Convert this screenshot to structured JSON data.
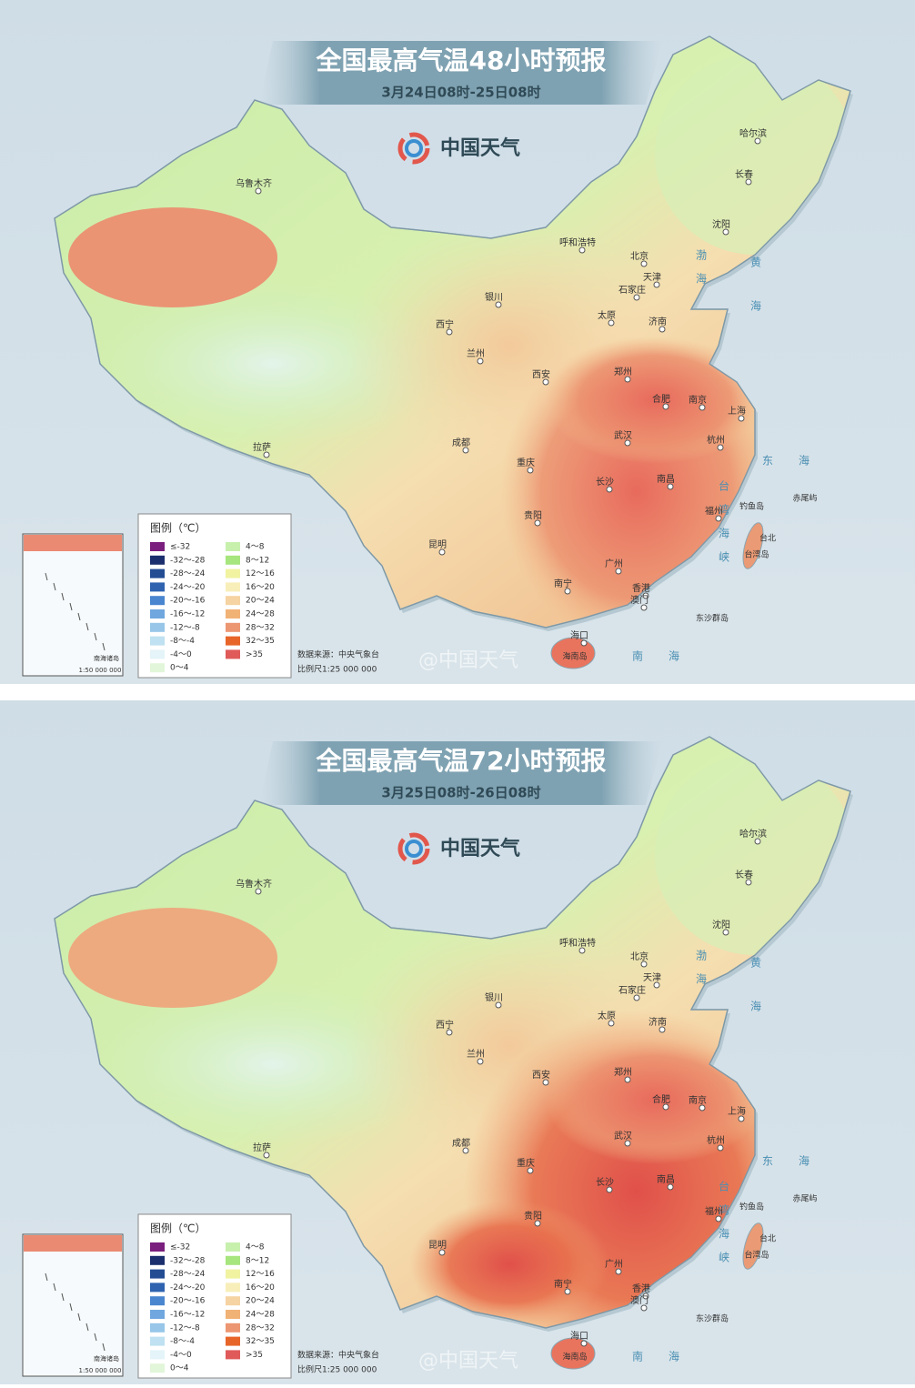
{
  "panels": [
    {
      "title": "全国最高气温48小时预报",
      "subtitle": "3月24日08时-25日08时"
    },
    {
      "title": "全国最高气温72小时预报",
      "subtitle": "3月25日08时-26日08时"
    }
  ],
  "brand": "中国天气",
  "legend": {
    "title": "图例（℃）",
    "items": [
      {
        "label": "≤-32",
        "color": "#7a1f7e"
      },
      {
        "label": "-32～-28",
        "color": "#1b2f6e"
      },
      {
        "label": "-28～-24",
        "color": "#234c93"
      },
      {
        "label": "-24～-20",
        "color": "#2f63b0"
      },
      {
        "label": "-20～-16",
        "color": "#4a86cf"
      },
      {
        "label": "-16～-12",
        "color": "#70a7de"
      },
      {
        "label": "-12～-8",
        "color": "#97c6e8"
      },
      {
        "label": "-8～-4",
        "color": "#bfe1f1"
      },
      {
        "label": "-4～0",
        "color": "#e4f4f8"
      },
      {
        "label": "0～4",
        "color": "#e2f6d9"
      },
      {
        "label": "4～8",
        "color": "#c7f0ad"
      },
      {
        "label": "8～12",
        "color": "#a7e57e"
      },
      {
        "label": "12～16",
        "color": "#f1f3a1"
      },
      {
        "label": "16～20",
        "color": "#f8eeb9"
      },
      {
        "label": "20～24",
        "color": "#f6d3a2"
      },
      {
        "label": "24～28",
        "color": "#f1b276"
      },
      {
        "label": "28～32",
        "color": "#ec9672"
      },
      {
        "label": "32～35",
        "color": "#e8652a"
      },
      {
        "label": ">35",
        "color": "#e05a5a"
      }
    ]
  },
  "cities": [
    "乌鲁木齐",
    "哈尔滨",
    "长春",
    "沈阳",
    "呼和浩特",
    "北京",
    "天津",
    "石家庄",
    "太原",
    "济南",
    "银川",
    "西宁",
    "兰州",
    "西安",
    "郑州",
    "合肥",
    "南京",
    "上海",
    "杭州",
    "武汉",
    "拉萨",
    "成都",
    "重庆",
    "长沙",
    "南昌",
    "福州",
    "贵阳",
    "昆明",
    "南宁",
    "广州",
    "香港",
    "澳门",
    "海口"
  ],
  "islands": [
    "台北",
    "台湾岛",
    "海南岛",
    "钓鱼岛",
    "赤尾屿",
    "东沙群岛"
  ],
  "seas": [
    "渤海",
    "黄海",
    "东海",
    "南海",
    "台湾海峡"
  ],
  "source": "数据来源：中央气象台",
  "scale": "比例尺1:25 000 000",
  "inset": {
    "title": "南海诸岛",
    "scale": "1:50 000 000"
  },
  "watermark": "@中国天气"
}
